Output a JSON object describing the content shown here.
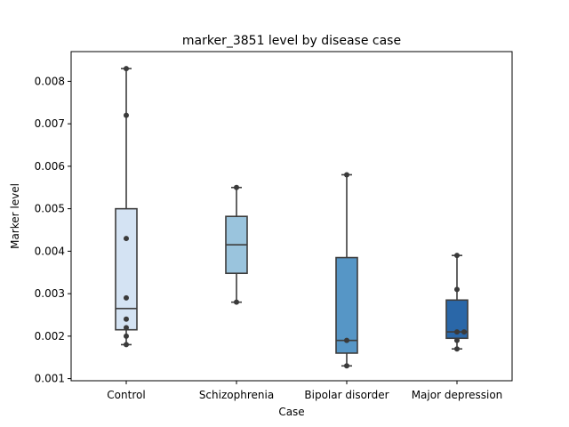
{
  "chart_data": {
    "type": "box",
    "title": "marker_3851 level by disease case",
    "xlabel": "Case",
    "ylabel": "Marker level",
    "ylim": [
      0.00095,
      0.0087
    ],
    "yticks": [
      0.001,
      0.002,
      0.003,
      0.004,
      0.005,
      0.006,
      0.007,
      0.008
    ],
    "ytick_labels": [
      "0.001",
      "0.002",
      "0.003",
      "0.004",
      "0.005",
      "0.006",
      "0.007",
      "0.008"
    ],
    "grid": false,
    "categories": [
      "Control",
      "Schizophrenia",
      "Bipolar disorder",
      "Major depression"
    ],
    "boxes": [
      {
        "category": "Control",
        "color": "#d4e3f3",
        "whisker_low": 0.0018,
        "q1": 0.00215,
        "median": 0.00265,
        "q3": 0.005,
        "whisker_high": 0.0083,
        "points": [
          0.0083,
          0.0072,
          0.0043,
          0.0029,
          0.0024,
          0.0022,
          0.002,
          0.0018
        ]
      },
      {
        "category": "Schizophrenia",
        "color": "#9ac4dd",
        "whisker_low": 0.0028,
        "q1": 0.00348,
        "median": 0.00415,
        "q3": 0.00482,
        "whisker_high": 0.0055,
        "points": [
          0.0055,
          0.0028
        ]
      },
      {
        "category": "Bipolar disorder",
        "color": "#5696c6",
        "whisker_low": 0.0013,
        "q1": 0.0016,
        "median": 0.0019,
        "q3": 0.00385,
        "whisker_high": 0.0058,
        "points": [
          0.0058,
          0.0019,
          0.0013
        ]
      },
      {
        "category": "Major depression",
        "color": "#2a67a8",
        "whisker_low": 0.0017,
        "q1": 0.00195,
        "median": 0.0021,
        "q3": 0.00285,
        "whisker_high": 0.0039,
        "points": [
          0.0039,
          0.0031,
          0.0021,
          0.0021,
          0.0019,
          0.0017
        ]
      }
    ]
  }
}
